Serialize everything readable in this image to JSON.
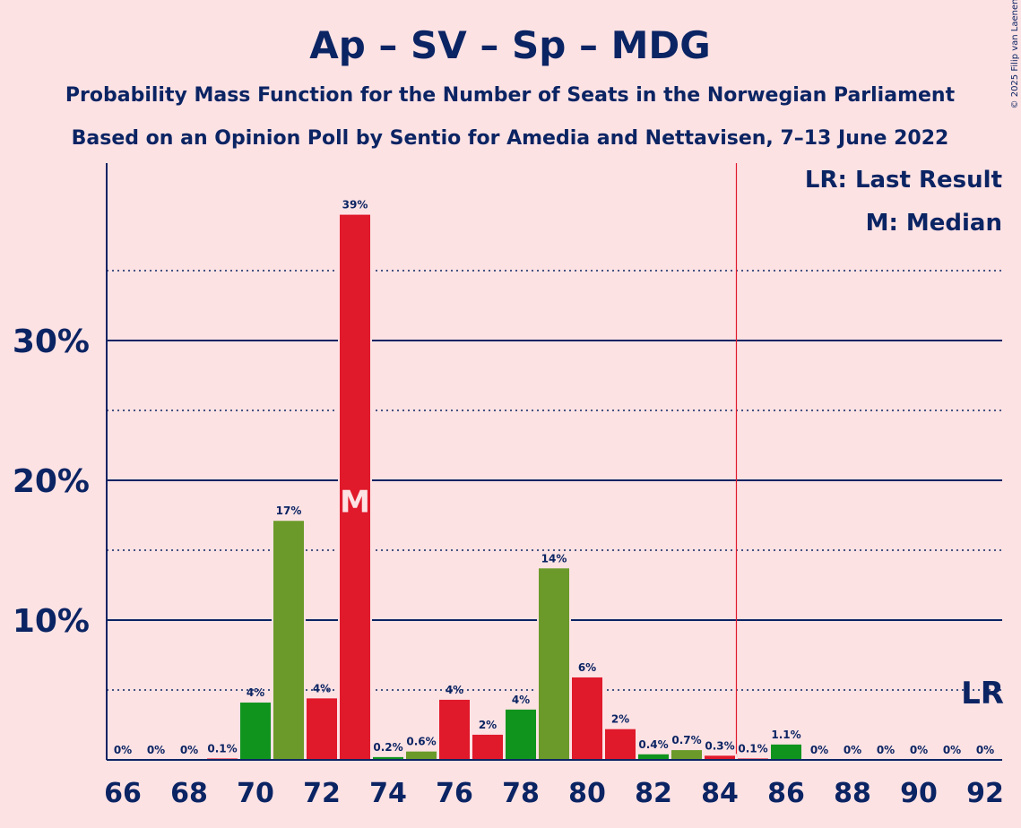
{
  "colors": {
    "background": "#FDE2E4",
    "text": "#0B2463",
    "ap": "#E0192B",
    "sv": "#6B9A2A",
    "sp": "#10941E",
    "lr_line": "#E0192B"
  },
  "copyright": "© 2025 Filip van Laenen",
  "chart_data": {
    "type": "bar",
    "title": "Ap – SV – Sp – MDG",
    "subtitle_1": "Probability Mass Function for the Number of Seats in the Norwegian Parliament",
    "subtitle_2": "Based on an Opinion Poll by Sentio for Amedia and Nettavisen, 7–13 June 2022",
    "legend_lr": "LR: Last Result",
    "legend_median": "M: Median",
    "median_marker": "M",
    "lr_marker": "LR",
    "median_seat": 73,
    "last_result_seat": 85,
    "x_range": [
      66,
      92
    ],
    "ylim": [
      0,
      42
    ],
    "y_ticks": [
      {
        "value": 10,
        "label": "10%"
      },
      {
        "value": 20,
        "label": "20%"
      },
      {
        "value": 30,
        "label": "30%"
      }
    ],
    "y_minor_ticks": [
      5,
      15,
      25,
      35
    ],
    "x_ticks": [
      {
        "value": 66,
        "label": "66"
      },
      {
        "value": 68,
        "label": "68"
      },
      {
        "value": 70,
        "label": "70"
      },
      {
        "value": 72,
        "label": "72"
      },
      {
        "value": 74,
        "label": "74"
      },
      {
        "value": 76,
        "label": "76"
      },
      {
        "value": 78,
        "label": "78"
      },
      {
        "value": 80,
        "label": "80"
      },
      {
        "value": 82,
        "label": "82"
      },
      {
        "value": 84,
        "label": "84"
      },
      {
        "value": 86,
        "label": "86"
      },
      {
        "value": 88,
        "label": "88"
      },
      {
        "value": 90,
        "label": "90"
      },
      {
        "value": 92,
        "label": "92"
      }
    ],
    "bars": [
      {
        "seat": 66,
        "value": 0,
        "label": "0%",
        "color": "sp"
      },
      {
        "seat": 67,
        "value": 0,
        "label": "0%",
        "color": "sv"
      },
      {
        "seat": 68,
        "value": 0,
        "label": "0%",
        "color": "ap"
      },
      {
        "seat": 69,
        "value": 0.1,
        "label": "0.1%",
        "color": "ap"
      },
      {
        "seat": 70,
        "value": 4.1,
        "label": "4%",
        "color": "sp"
      },
      {
        "seat": 71,
        "value": 17.1,
        "label": "17%",
        "color": "sv"
      },
      {
        "seat": 72,
        "value": 4.4,
        "label": "4%",
        "color": "ap"
      },
      {
        "seat": 73,
        "value": 39,
        "label": "39%",
        "color": "ap"
      },
      {
        "seat": 74,
        "value": 0.2,
        "label": "0.2%",
        "color": "sp"
      },
      {
        "seat": 75,
        "value": 0.6,
        "label": "0.6%",
        "color": "sv"
      },
      {
        "seat": 76,
        "value": 4.3,
        "label": "4%",
        "color": "ap"
      },
      {
        "seat": 77,
        "value": 1.8,
        "label": "2%",
        "color": "ap"
      },
      {
        "seat": 78,
        "value": 3.6,
        "label": "4%",
        "color": "sp"
      },
      {
        "seat": 79,
        "value": 13.7,
        "label": "14%",
        "color": "sv"
      },
      {
        "seat": 80,
        "value": 5.9,
        "label": "6%",
        "color": "ap"
      },
      {
        "seat": 81,
        "value": 2.2,
        "label": "2%",
        "color": "ap"
      },
      {
        "seat": 82,
        "value": 0.4,
        "label": "0.4%",
        "color": "sp"
      },
      {
        "seat": 83,
        "value": 0.7,
        "label": "0.7%",
        "color": "sv"
      },
      {
        "seat": 84,
        "value": 0.3,
        "label": "0.3%",
        "color": "ap"
      },
      {
        "seat": 85,
        "value": 0.1,
        "label": "0.1%",
        "color": "ap"
      },
      {
        "seat": 86,
        "value": 1.1,
        "label": "1.1%",
        "color": "sp"
      },
      {
        "seat": 87,
        "value": 0,
        "label": "0%",
        "color": "sv"
      },
      {
        "seat": 88,
        "value": 0,
        "label": "0%",
        "color": "ap"
      },
      {
        "seat": 89,
        "value": 0,
        "label": "0%",
        "color": "ap"
      },
      {
        "seat": 90,
        "value": 0,
        "label": "0%",
        "color": "sp"
      },
      {
        "seat": 91,
        "value": 0,
        "label": "0%",
        "color": "sv"
      },
      {
        "seat": 92,
        "value": 0,
        "label": "0%",
        "color": "ap"
      }
    ]
  }
}
